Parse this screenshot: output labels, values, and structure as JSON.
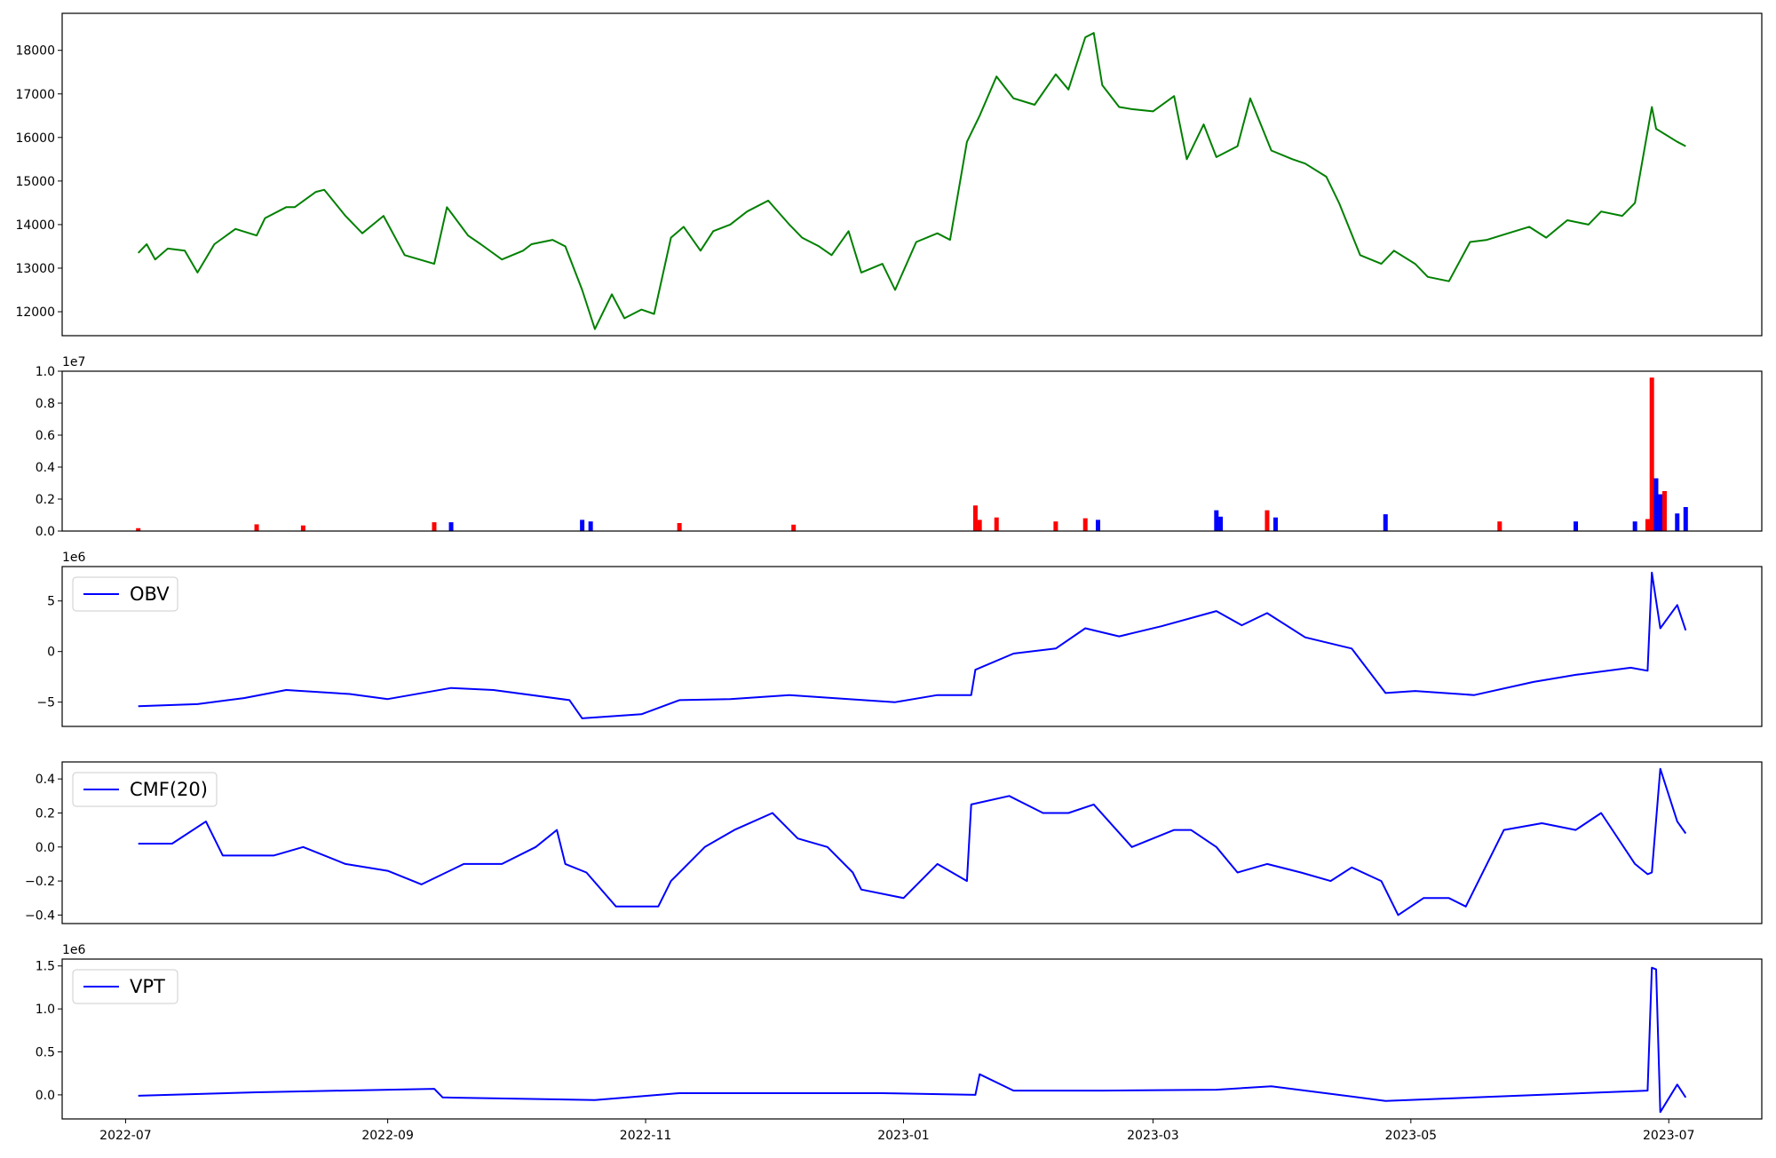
{
  "chart_data": [
    {
      "panel": "price",
      "type": "line",
      "color": "#008000",
      "x": [
        "2022-07-04",
        "2022-07-06",
        "2022-07-08",
        "2022-07-11",
        "2022-07-15",
        "2022-07-18",
        "2022-07-22",
        "2022-07-27",
        "2022-08-01",
        "2022-08-03",
        "2022-08-08",
        "2022-08-10",
        "2022-08-15",
        "2022-08-17",
        "2022-08-22",
        "2022-08-26",
        "2022-08-31",
        "2022-09-05",
        "2022-09-12",
        "2022-09-15",
        "2022-09-20",
        "2022-09-23",
        "2022-09-28",
        "2022-10-03",
        "2022-10-05",
        "2022-10-10",
        "2022-10-13",
        "2022-10-17",
        "2022-10-20",
        "2022-10-24",
        "2022-10-27",
        "2022-10-31",
        "2022-11-03",
        "2022-11-07",
        "2022-11-10",
        "2022-11-14",
        "2022-11-17",
        "2022-11-21",
        "2022-11-25",
        "2022-11-30",
        "2022-12-05",
        "2022-12-08",
        "2022-12-12",
        "2022-12-15",
        "2022-12-19",
        "2022-12-22",
        "2022-12-27",
        "2022-12-30",
        "2023-01-04",
        "2023-01-09",
        "2023-01-12",
        "2023-01-16",
        "2023-01-19",
        "2023-01-23",
        "2023-01-27",
        "2023-02-01",
        "2023-02-06",
        "2023-02-09",
        "2023-02-13",
        "2023-02-15",
        "2023-02-17",
        "2023-02-21",
        "2023-02-24",
        "2023-03-01",
        "2023-03-06",
        "2023-03-09",
        "2023-03-13",
        "2023-03-16",
        "2023-03-21",
        "2023-03-24",
        "2023-03-29",
        "2023-04-03",
        "2023-04-06",
        "2023-04-11",
        "2023-04-14",
        "2023-04-19",
        "2023-04-24",
        "2023-04-27",
        "2023-05-02",
        "2023-05-05",
        "2023-05-10",
        "2023-05-15",
        "2023-05-19",
        "2023-05-24",
        "2023-05-29",
        "2023-06-02",
        "2023-06-07",
        "2023-06-12",
        "2023-06-15",
        "2023-06-20",
        "2023-06-23",
        "2023-06-27",
        "2023-06-28",
        "2023-07-03",
        "2023-07-05"
      ],
      "y": [
        13350,
        13550,
        13200,
        13450,
        13400,
        12900,
        13550,
        13900,
        13750,
        14150,
        14400,
        14400,
        14750,
        14800,
        14200,
        13800,
        14200,
        13300,
        13100,
        14400,
        13750,
        13550,
        13200,
        13400,
        13550,
        13650,
        13500,
        12500,
        11600,
        12400,
        11850,
        12050,
        11950,
        13700,
        13950,
        13400,
        13850,
        14000,
        14300,
        14550,
        14000,
        13700,
        13500,
        13300,
        13850,
        12900,
        13100,
        12500,
        13600,
        13800,
        13650,
        15900,
        16500,
        17400,
        16900,
        16750,
        17450,
        17100,
        18300,
        18400,
        17200,
        16700,
        16650,
        16600,
        16950,
        15500,
        16300,
        15550,
        15800,
        16900,
        15700,
        15500,
        15400,
        15100,
        14500,
        13300,
        13100,
        13400,
        13100,
        12800,
        12700,
        13600,
        13650,
        13800,
        13950,
        13700,
        14100,
        14000,
        14300,
        14200,
        14500,
        16700,
        16200,
        15900,
        15800
      ],
      "ylim": [
        11450,
        18850
      ],
      "yticks": [
        "12000",
        "13000",
        "14000",
        "15000",
        "16000",
        "17000",
        "18000"
      ]
    },
    {
      "panel": "volume",
      "type": "bar",
      "colors": {
        "up": "#ff0000",
        "down": "#0000ff"
      },
      "offset_text": "1e7",
      "yticks": [
        "0.0",
        "0.2",
        "0.4",
        "0.6",
        "0.8",
        "1.0"
      ],
      "ylim": [
        0,
        1.0
      ],
      "x": [
        "2022-07-04",
        "2022-08-01",
        "2022-08-12",
        "2022-09-12",
        "2022-09-16",
        "2022-10-17",
        "2022-10-19",
        "2022-11-09",
        "2022-12-06",
        "2023-01-18",
        "2023-01-19",
        "2023-01-23",
        "2023-02-06",
        "2023-02-13",
        "2023-02-16",
        "2023-03-16",
        "2023-03-17",
        "2023-03-28",
        "2023-03-30",
        "2023-04-25",
        "2023-05-22",
        "2023-06-09",
        "2023-06-23",
        "2023-06-26",
        "2023-06-27",
        "2023-06-28",
        "2023-06-29",
        "2023-06-30",
        "2023-07-03",
        "2023-07-05"
      ],
      "values": [
        0.018,
        0.042,
        0.035,
        0.055,
        0.055,
        0.07,
        0.06,
        0.05,
        0.04,
        0.16,
        0.07,
        0.085,
        0.06,
        0.08,
        0.07,
        0.13,
        0.09,
        0.13,
        0.085,
        0.105,
        0.06,
        0.06,
        0.06,
        0.075,
        0.96,
        0.33,
        0.23,
        0.25,
        0.11,
        0.15
      ],
      "directions": [
        "up",
        "up",
        "up",
        "up",
        "down",
        "down",
        "down",
        "up",
        "up",
        "up",
        "up",
        "up",
        "up",
        "up",
        "down",
        "down",
        "down",
        "up",
        "down",
        "down",
        "up",
        "down",
        "down",
        "up",
        "up",
        "down",
        "down",
        "up",
        "down",
        "down"
      ]
    },
    {
      "panel": "obv",
      "type": "line",
      "color": "#0000ff",
      "legend": "OBV",
      "offset_text": "1e6",
      "yticks": [
        "−5",
        "0",
        "5"
      ],
      "ylim": [
        -7.4,
        8.4
      ],
      "x": [
        "2022-07-04",
        "2022-07-18",
        "2022-07-29",
        "2022-08-08",
        "2022-08-23",
        "2022-09-01",
        "2022-09-16",
        "2022-09-26",
        "2022-10-14",
        "2022-10-17",
        "2022-10-31",
        "2022-11-09",
        "2022-11-21",
        "2022-12-05",
        "2022-12-19",
        "2022-12-30",
        "2023-01-09",
        "2023-01-17",
        "2023-01-18",
        "2023-01-27",
        "2023-02-06",
        "2023-02-13",
        "2023-02-21",
        "2023-03-03",
        "2023-03-16",
        "2023-03-22",
        "2023-03-28",
        "2023-04-06",
        "2023-04-17",
        "2023-04-25",
        "2023-05-02",
        "2023-05-16",
        "2023-05-30",
        "2023-06-09",
        "2023-06-22",
        "2023-06-26",
        "2023-06-27",
        "2023-06-29",
        "2023-07-03",
        "2023-07-05"
      ],
      "y": [
        -5.4,
        -5.2,
        -4.6,
        -3.8,
        -4.2,
        -4.7,
        -3.6,
        -3.8,
        -4.8,
        -6.6,
        -6.2,
        -4.8,
        -4.7,
        -4.3,
        -4.7,
        -5.0,
        -4.3,
        -4.3,
        -1.8,
        -0.2,
        0.3,
        2.3,
        1.5,
        2.5,
        4.0,
        2.6,
        3.8,
        1.4,
        0.3,
        -4.1,
        -3.9,
        -4.3,
        -3.0,
        -2.3,
        -1.6,
        -1.9,
        7.8,
        2.3,
        4.6,
        2.1
      ]
    },
    {
      "panel": "cmf",
      "type": "line",
      "color": "#0000ff",
      "legend": "CMF(20)",
      "yticks": [
        "−0.4",
        "−0.2",
        "0.0",
        "0.2",
        "0.4"
      ],
      "ylim": [
        -0.45,
        0.5
      ],
      "x": [
        "2022-07-04",
        "2022-07-12",
        "2022-07-20",
        "2022-07-24",
        "2022-08-05",
        "2022-08-12",
        "2022-08-22",
        "2022-09-01",
        "2022-09-09",
        "2022-09-19",
        "2022-09-28",
        "2022-10-06",
        "2022-10-11",
        "2022-10-13",
        "2022-10-18",
        "2022-10-25",
        "2022-11-04",
        "2022-11-07",
        "2022-11-15",
        "2022-11-22",
        "2022-12-01",
        "2022-12-07",
        "2022-12-14",
        "2022-12-20",
        "2022-12-22",
        "2023-01-01",
        "2023-01-09",
        "2023-01-16",
        "2023-01-17",
        "2023-01-26",
        "2023-02-03",
        "2023-02-09",
        "2023-02-15",
        "2023-02-24",
        "2023-03-06",
        "2023-03-10",
        "2023-03-16",
        "2023-03-21",
        "2023-03-28",
        "2023-04-05",
        "2023-04-12",
        "2023-04-17",
        "2023-04-24",
        "2023-04-28",
        "2023-05-04",
        "2023-05-10",
        "2023-05-14",
        "2023-05-23",
        "2023-06-01",
        "2023-06-09",
        "2023-06-15",
        "2023-06-23",
        "2023-06-26",
        "2023-06-27",
        "2023-06-29",
        "2023-07-03",
        "2023-07-05"
      ],
      "y": [
        0.02,
        0.02,
        0.15,
        -0.05,
        -0.05,
        0.0,
        -0.1,
        -0.14,
        -0.22,
        -0.1,
        -0.1,
        0.0,
        0.1,
        -0.1,
        -0.15,
        -0.35,
        -0.35,
        -0.2,
        0.0,
        0.1,
        0.2,
        0.05,
        0.0,
        -0.15,
        -0.25,
        -0.3,
        -0.1,
        -0.2,
        0.25,
        0.3,
        0.2,
        0.2,
        0.25,
        0.0,
        0.1,
        0.1,
        0.0,
        -0.15,
        -0.1,
        -0.15,
        -0.2,
        -0.12,
        -0.2,
        -0.4,
        -0.3,
        -0.3,
        -0.35,
        0.1,
        0.14,
        0.1,
        0.2,
        -0.1,
        -0.16,
        -0.15,
        0.46,
        0.15,
        0.08
      ]
    },
    {
      "panel": "vpt",
      "type": "line",
      "color": "#0000ff",
      "legend": "VPT",
      "offset_text": "1e6",
      "yticks": [
        "0.0",
        "0.5",
        "1.0",
        "1.5"
      ],
      "ylim": [
        -0.28,
        1.58
      ],
      "x": [
        "2022-07-04",
        "2022-08-01",
        "2022-09-12",
        "2022-09-14",
        "2022-10-20",
        "2022-11-09",
        "2022-12-27",
        "2023-01-18",
        "2023-01-19",
        "2023-01-27",
        "2023-02-17",
        "2023-03-16",
        "2023-03-29",
        "2023-04-25",
        "2023-06-26",
        "2023-06-27",
        "2023-06-28",
        "2023-06-29",
        "2023-07-03",
        "2023-07-05"
      ],
      "y": [
        -0.01,
        0.03,
        0.07,
        -0.03,
        -0.06,
        0.02,
        0.02,
        0.0,
        0.24,
        0.05,
        0.05,
        0.06,
        0.1,
        -0.07,
        0.05,
        1.48,
        1.46,
        -0.2,
        0.12,
        -0.03
      ]
    }
  ],
  "x_axis": {
    "ticks": [
      "2022-07",
      "2022-09",
      "2022-11",
      "2023-01",
      "2023-03",
      "2023-05",
      "2023-07"
    ]
  }
}
